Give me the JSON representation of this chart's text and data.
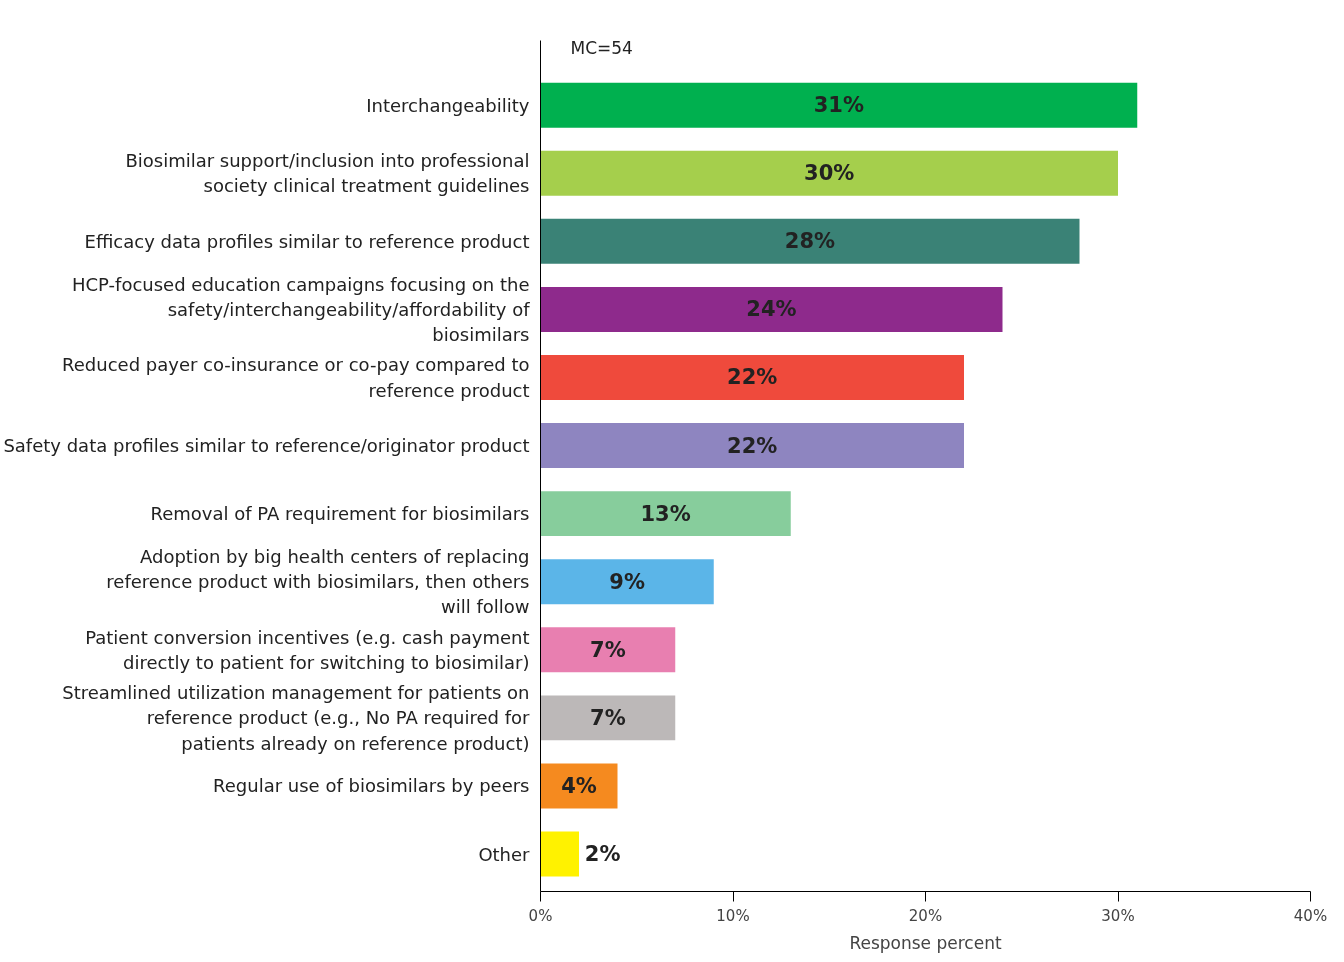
{
  "chart_data": {
    "type": "bar",
    "orientation": "horizontal",
    "xlabel": "Response percent",
    "annotations": [
      "MC=54"
    ],
    "categories": [
      "Interchangeability",
      "Biosimilar support/inclusion into professional society clinical treatment guidelines",
      "Efficacy data profiles similar to reference product",
      "HCP-focused education campaigns focusing on the safety/interchangeability/affordability of biosimilars",
      "Reduced payer co-insurance or co-pay compared to reference product",
      "Safety data profiles similar to reference/originator product",
      "Removal of PA requirement for biosimilars",
      "Adoption by big health centers of replacing reference product with biosimilars, then others will follow",
      "Patient conversion incentives (e.g. cash payment directly to patient for switching to biosimilar)",
      "Streamlined utilization management for patients on reference product (e.g., No PA required for patients already on reference product)",
      "Regular use of biosimilars by peers",
      "Other"
    ],
    "values": [
      31,
      30,
      28,
      24,
      22,
      22,
      13,
      9,
      7,
      7,
      4,
      2
    ],
    "value_labels": [
      "31%",
      "30%",
      "28%",
      "24%",
      "22%",
      "22%",
      "13%",
      "9%",
      "7%",
      "7%",
      "4%",
      "2%"
    ],
    "colors": [
      "#00b04f",
      "#a5cf4c",
      "#3a8276",
      "#8e2a8c",
      "#ef4a3c",
      "#8e85c0",
      "#87cd9c",
      "#5bb5e8",
      "#e87fb0",
      "#bcb8b8",
      "#f58a1f",
      "#fff200"
    ],
    "xlim": [
      0,
      40
    ],
    "xticks": [
      {
        "value": 0,
        "label": "0%"
      },
      {
        "value": 10,
        "label": "10%"
      },
      {
        "value": 20,
        "label": "20%"
      },
      {
        "value": 30,
        "label": "30%"
      },
      {
        "value": 40,
        "label": "40%"
      }
    ],
    "grid": false
  }
}
